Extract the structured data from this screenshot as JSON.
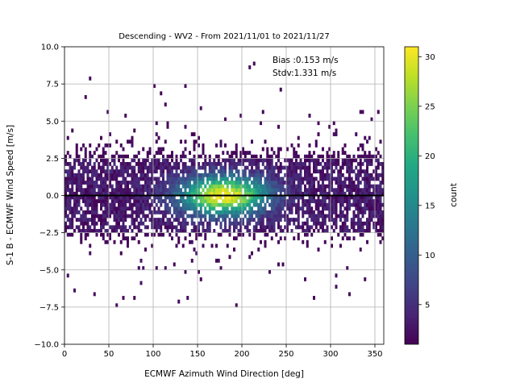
{
  "chart_data": {
    "type": "heatmap",
    "title": "Descending - WV2 - From 2021/11/01 to 2021/11/27",
    "xlabel": "ECMWF Azimuth Wind Direction [deg]",
    "ylabel": "S-1 B - ECMWF Wind Speed [m/s]",
    "xlim": [
      0,
      360
    ],
    "ylim": [
      -10,
      10
    ],
    "x_ticks": [
      "0",
      "50",
      "100",
      "150",
      "200",
      "250",
      "300",
      "350"
    ],
    "y_ticks": [
      "−10.0",
      "−7.5",
      "−5.0",
      "−2.5",
      "0.0",
      "2.5",
      "5.0",
      "7.5",
      "10.0"
    ],
    "grid": true,
    "colormap": "viridis",
    "colorbar": {
      "label": "count",
      "range": [
        1,
        31
      ],
      "ticks": [
        "5",
        "10",
        "15",
        "20",
        "25",
        "30"
      ]
    },
    "reference_line": {
      "y": 0,
      "color": "#000000"
    },
    "annotations": [
      "Bias :0.153 m/s",
      "Stdv:1.331 m/s"
    ],
    "distribution": {
      "bin_width_deg": 2.5,
      "bin_height_ms": 0.25,
      "core_range_ms": [
        -2.5,
        2.5
      ],
      "peak_direction_deg": 180,
      "peak_count": 31,
      "outlier_range_ms": [
        -8.0,
        9.8
      ]
    }
  }
}
